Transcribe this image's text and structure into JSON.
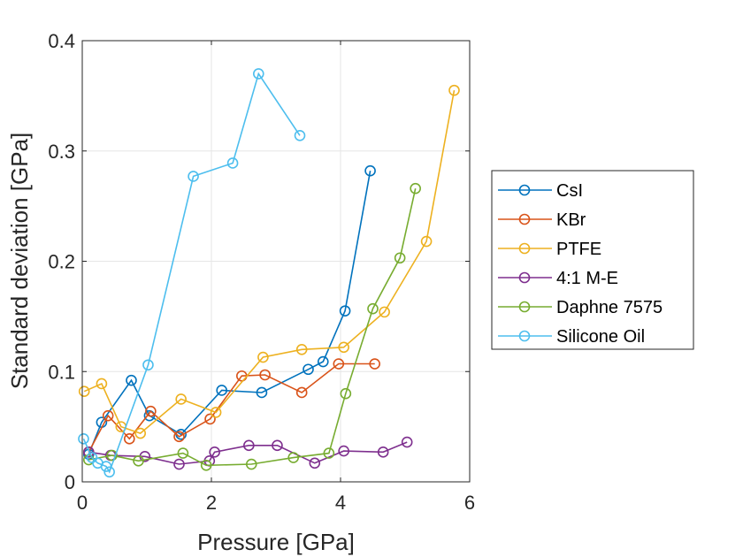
{
  "chart_data": {
    "type": "line",
    "title": "",
    "xlabel": "Pressure [GPa]",
    "ylabel": "Standard deviation [GPa]",
    "xlim": [
      0,
      6
    ],
    "ylim": [
      0,
      0.4
    ],
    "xticks": [
      0,
      2,
      4,
      6
    ],
    "yticks": [
      0,
      0.1,
      0.2,
      0.3,
      0.4
    ],
    "xtick_labels": [
      "0",
      "2",
      "4",
      "6"
    ],
    "ytick_labels": [
      "0",
      "0.1",
      "0.2",
      "0.3",
      "0.4"
    ],
    "grid": true,
    "legend_position": "right",
    "series": [
      {
        "name": "CsI",
        "color": "#0072BD",
        "x": [
          0.1,
          0.3,
          0.76,
          1.04,
          1.53,
          2.16,
          2.78,
          3.5,
          3.73,
          4.07,
          4.46
        ],
        "y": [
          0.025,
          0.054,
          0.092,
          0.06,
          0.043,
          0.083,
          0.081,
          0.102,
          0.109,
          0.155,
          0.282
        ]
      },
      {
        "name": "KBr",
        "color": "#D95319",
        "x": [
          0.1,
          0.4,
          0.73,
          1.06,
          1.5,
          1.98,
          2.47,
          2.83,
          3.4,
          3.97,
          4.53
        ],
        "y": [
          0.027,
          0.06,
          0.039,
          0.064,
          0.041,
          0.057,
          0.096,
          0.097,
          0.081,
          0.107,
          0.107
        ]
      },
      {
        "name": "PTFE",
        "color": "#EDB120",
        "x": [
          0.03,
          0.3,
          0.6,
          0.9,
          1.53,
          2.07,
          2.8,
          3.4,
          4.05,
          4.68,
          5.33,
          5.76
        ],
        "y": [
          0.082,
          0.089,
          0.05,
          0.044,
          0.075,
          0.063,
          0.113,
          0.12,
          0.122,
          0.154,
          0.218,
          0.355
        ]
      },
      {
        "name": "4:1 M-E",
        "color": "#7E2F8E",
        "x": [
          0.1,
          0.44,
          0.97,
          1.5,
          1.97,
          2.05,
          2.58,
          3.02,
          3.6,
          4.05,
          4.66,
          5.03
        ],
        "y": [
          0.027,
          0.024,
          0.023,
          0.016,
          0.019,
          0.027,
          0.033,
          0.033,
          0.017,
          0.028,
          0.027,
          0.036
        ]
      },
      {
        "name": "Daphne 7575",
        "color": "#77AC30",
        "x": [
          0.1,
          0.46,
          0.87,
          1.56,
          1.92,
          2.62,
          3.27,
          3.82,
          4.08,
          4.5,
          4.92,
          5.16
        ],
        "y": [
          0.02,
          0.024,
          0.019,
          0.026,
          0.015,
          0.016,
          0.022,
          0.026,
          0.08,
          0.157,
          0.203,
          0.266
        ]
      },
      {
        "name": "Silicone Oil",
        "color": "#4DBEEE",
        "x": [
          0.02,
          0.15,
          0.24,
          0.37,
          0.42,
          1.02,
          1.72,
          2.33,
          2.73,
          3.37
        ],
        "y": [
          0.039,
          0.022,
          0.017,
          0.014,
          0.009,
          0.106,
          0.277,
          0.289,
          0.37,
          0.314
        ]
      }
    ]
  }
}
